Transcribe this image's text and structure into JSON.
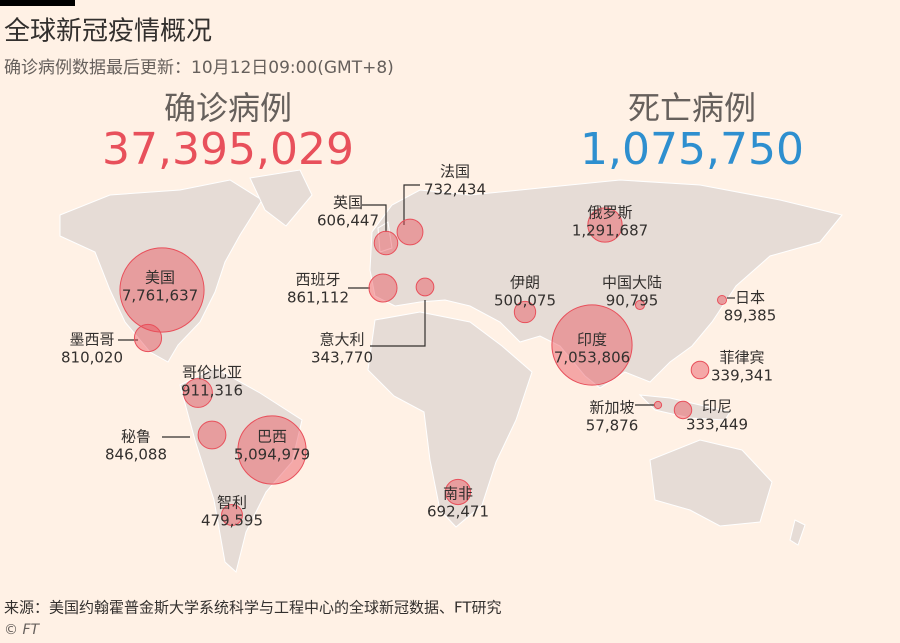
{
  "header": {
    "title": "全球新冠疫情概况",
    "subtitle": "确诊病例数据最后更新：10月12日09:00(GMT+8)"
  },
  "totals": {
    "confirmed": {
      "label": "确诊病例",
      "value": "37,395,029"
    },
    "deaths": {
      "label": "死亡病例",
      "value": "1,075,750"
    }
  },
  "countries": [
    {
      "name": "美国",
      "value": 7761637,
      "label": "7,761,637"
    },
    {
      "name": "墨西哥",
      "value": 810020,
      "label": "810,020"
    },
    {
      "name": "哥伦比亚",
      "value": 911316,
      "label": "911,316"
    },
    {
      "name": "秘鲁",
      "value": 846088,
      "label": "846,088"
    },
    {
      "name": "巴西",
      "value": 5094979,
      "label": "5,094,979"
    },
    {
      "name": "智利",
      "value": 479595,
      "label": "479,595"
    },
    {
      "name": "英国",
      "value": 606447,
      "label": "606,447"
    },
    {
      "name": "法国",
      "value": 732434,
      "label": "732,434"
    },
    {
      "name": "西班牙",
      "value": 861112,
      "label": "861,112"
    },
    {
      "name": "意大利",
      "value": 343770,
      "label": "343,770"
    },
    {
      "name": "伊朗",
      "value": 500075,
      "label": "500,075"
    },
    {
      "name": "俄罗斯",
      "value": 1291687,
      "label": "1,291,687"
    },
    {
      "name": "中国大陆",
      "value": 90795,
      "label": "90,795"
    },
    {
      "name": "日本",
      "value": 89385,
      "label": "89,385"
    },
    {
      "name": "印度",
      "value": 7053806,
      "label": "7,053,806"
    },
    {
      "name": "菲律宾",
      "value": 339341,
      "label": "339,341"
    },
    {
      "name": "新加坡",
      "value": 57876,
      "label": "57,876"
    },
    {
      "name": "印尼",
      "value": 333449,
      "label": "333,449"
    },
    {
      "name": "南非",
      "value": 692471,
      "label": "692,471"
    }
  ],
  "footer": {
    "source": "来源：美国约翰霍普金斯大学系统科学与工程中心的全球新冠数据、FT研究",
    "credit": "© FT"
  }
}
